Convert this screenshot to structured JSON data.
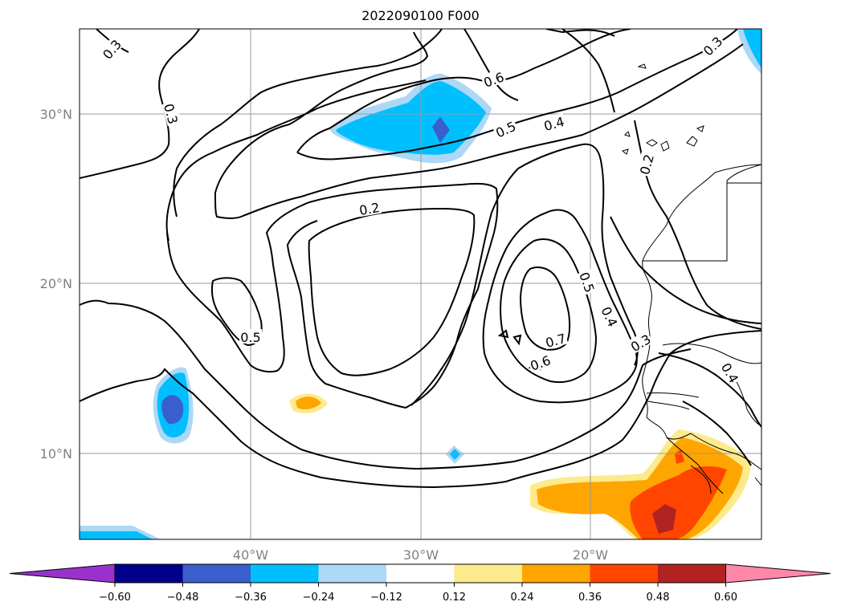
{
  "title": "2022090100 F000",
  "axes": {
    "lat_labels": [
      "30°N",
      "20°N",
      "10°N"
    ],
    "lon_labels": [
      "40°W",
      "30°W",
      "20°W"
    ]
  },
  "contour_labels": [
    "0.3",
    "0.3",
    "0.3",
    "0.2",
    "0.6",
    "0.5",
    "0.4",
    "0.2",
    "0.5",
    "0.5",
    "0.4",
    "0.3",
    "0.7",
    "0.6",
    "0.4"
  ],
  "colorbar": {
    "ticks": [
      "−0.60",
      "−0.48",
      "−0.36",
      "−0.24",
      "−0.12",
      "0.12",
      "0.24",
      "0.36",
      "0.48",
      "0.60"
    ],
    "colors": [
      "#9932cc",
      "#00008b",
      "#3a5fcd",
      "#00bfff",
      "#add8f5",
      "#ffffff",
      "#fdea8c",
      "#ffa500",
      "#ff4500",
      "#b22222",
      "#ff88aa"
    ]
  },
  "legend": {
    "shading": "filled anomalies",
    "contours": "black lines"
  }
}
